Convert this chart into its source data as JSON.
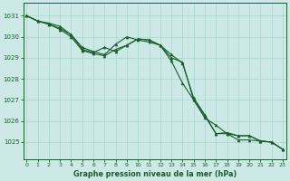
{
  "title": "Graphe pression niveau de la mer (hPa)",
  "background_color": "#cce9e6",
  "grid_color": "#aad4d0",
  "line_color": "#1a5c2a",
  "x_ticks": [
    0,
    1,
    2,
    3,
    4,
    5,
    6,
    7,
    8,
    9,
    10,
    11,
    12,
    13,
    14,
    15,
    16,
    17,
    18,
    19,
    20,
    21,
    22,
    23
  ],
  "y_ticks": [
    1025,
    1026,
    1027,
    1028,
    1029,
    1030,
    1031
  ],
  "ylim": [
    1024.2,
    1031.6
  ],
  "xlim": [
    -0.3,
    23.3
  ],
  "line1": [
    1031.0,
    1030.75,
    1030.65,
    1030.5,
    1030.1,
    1029.5,
    1029.3,
    1029.15,
    1029.65,
    1030.0,
    1029.85,
    1029.75,
    1029.6,
    1028.85,
    1027.8,
    1027.0,
    1026.15,
    1025.8,
    1025.4,
    1025.1,
    1025.1,
    1025.05,
    1025.0,
    1024.65
  ],
  "line2": [
    1031.0,
    1030.75,
    1030.6,
    1030.4,
    1030.1,
    1029.4,
    1029.25,
    1029.5,
    1029.3,
    1029.6,
    1029.9,
    1029.85,
    1029.6,
    1029.15,
    1028.75,
    1027.1,
    1026.3,
    1025.4,
    1025.45,
    1025.3,
    1025.3,
    1025.05,
    1025.0,
    1024.65
  ],
  "line3": [
    1031.0,
    1030.75,
    1030.6,
    1030.35,
    1030.0,
    1029.35,
    1029.2,
    1029.1,
    1029.4,
    1029.6,
    1029.9,
    1029.85,
    1029.6,
    1029.0,
    1028.8,
    1027.0,
    1026.25,
    1025.4,
    1025.4,
    1025.3,
    1025.3,
    1025.05,
    1025.0,
    1024.65
  ]
}
